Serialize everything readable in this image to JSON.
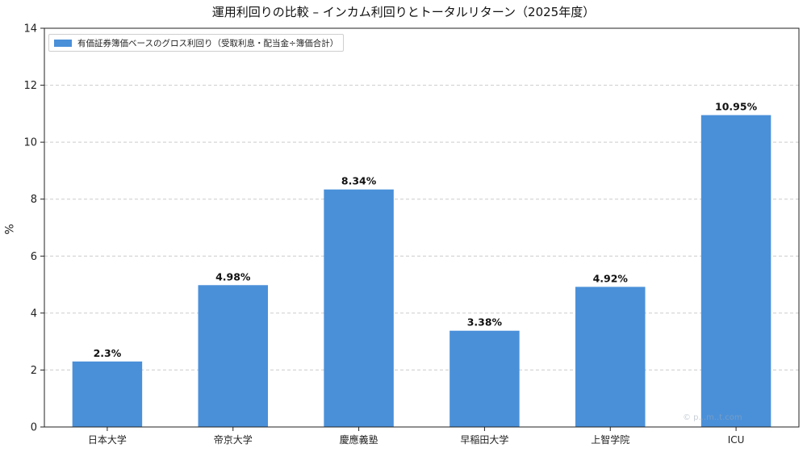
{
  "chart_data": {
    "type": "bar",
    "title": "運用利回りの比較 – インカム利回りとトータルリターン（2025年度）",
    "xlabel": "",
    "ylabel": "%",
    "ylim": [
      0,
      14
    ],
    "yticks": [
      0,
      2,
      4,
      6,
      8,
      10,
      12,
      14
    ],
    "grid": true,
    "legend_position": "top-left",
    "categories": [
      "日本大学",
      "帝京大学",
      "慶應義塾",
      "早稲田大学",
      "上智学院",
      "ICU"
    ],
    "series": [
      {
        "name": "有価証券簿価ベースのグロス利回り（受取利息・配当金÷簿価合計）",
        "values": [
          2.3,
          4.98,
          8.34,
          3.38,
          4.92,
          10.95
        ],
        "labels": [
          "2.3%",
          "4.98%",
          "8.34%",
          "3.38%",
          "4.92%",
          "10.95%"
        ],
        "color": "#4a90d9"
      }
    ],
    "watermark": "© p...m..t.com"
  }
}
